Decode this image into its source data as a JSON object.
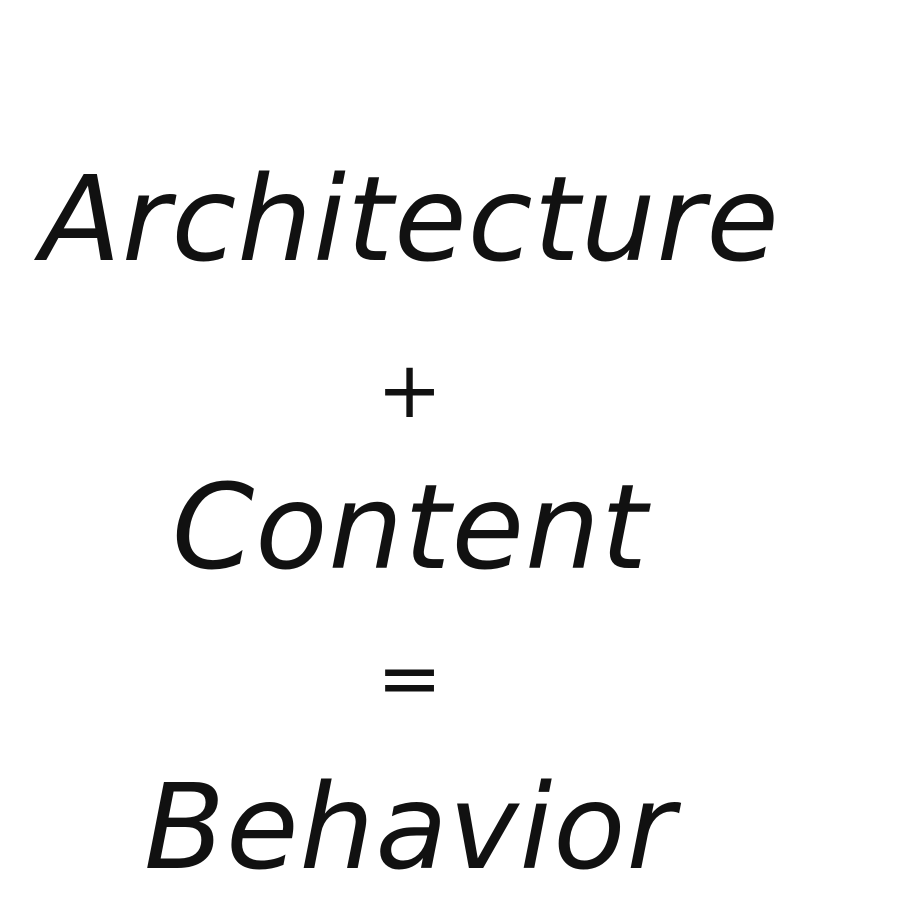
{
  "equation": {
    "line1": "Architecture",
    "line2": "+",
    "line3": "Content",
    "line4": "=",
    "line5": "Behavior"
  }
}
